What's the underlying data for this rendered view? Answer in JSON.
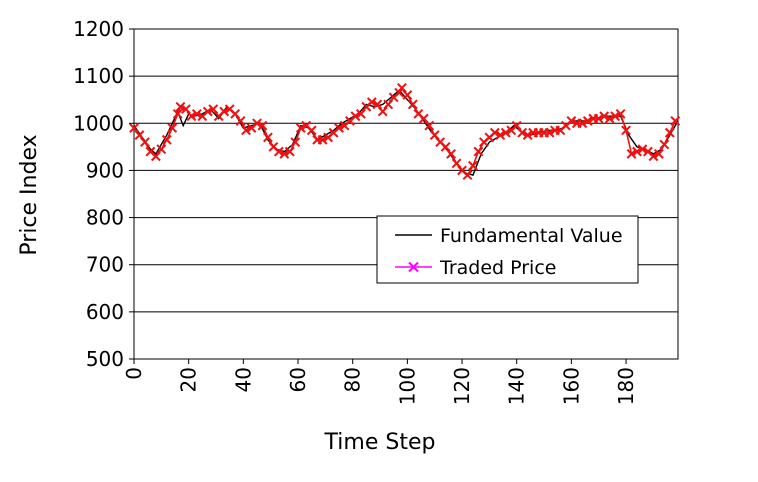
{
  "chart_data": {
    "type": "line",
    "xlabel": "Time Step",
    "ylabel": "Price Index",
    "xlim": [
      0,
      199
    ],
    "ylim": [
      500,
      1200
    ],
    "x_ticks": [
      0,
      20,
      40,
      60,
      80,
      100,
      120,
      140,
      160,
      180
    ],
    "y_ticks": [
      500,
      600,
      700,
      800,
      900,
      1000,
      1100,
      1200
    ],
    "grid": "horizontal",
    "legend_position": "center-right",
    "series": [
      {
        "name": "Fundamental Value",
        "color": "#000000",
        "marker": "none",
        "x": [
          0,
          3,
          6,
          8,
          10,
          12,
          14,
          16,
          18,
          20,
          22,
          25,
          28,
          31,
          34,
          37,
          40,
          43,
          46,
          49,
          52,
          55,
          58,
          61,
          64,
          67,
          70,
          73,
          76,
          79,
          82,
          85,
          88,
          91,
          94,
          97,
          100,
          103,
          106,
          109,
          112,
          115,
          118,
          121,
          124,
          127,
          130,
          133,
          136,
          139,
          142,
          145,
          148,
          151,
          154,
          157,
          160,
          163,
          166,
          169,
          172,
          175,
          178,
          181,
          184,
          187,
          190,
          193,
          196,
          199
        ],
        "values": [
          995,
          970,
          945,
          935,
          955,
          975,
          1000,
          1025,
          995,
          1020,
          1015,
          1020,
          1030,
          1010,
          1035,
          1020,
          990,
          995,
          1000,
          965,
          945,
          940,
          955,
          995,
          990,
          965,
          975,
          985,
          1000,
          1010,
          1020,
          1040,
          1035,
          1040,
          1055,
          1070,
          1050,
          1030,
          1005,
          980,
          960,
          940,
          915,
          895,
          890,
          935,
          960,
          970,
          980,
          995,
          980,
          975,
          980,
          985,
          985,
          990,
          1005,
          1005,
          1005,
          1010,
          1015,
          1015,
          1015,
          975,
          950,
          945,
          935,
          945,
          975,
          1005
        ]
      },
      {
        "name": "Traded Price",
        "color": "#ee1111",
        "legend_line_color": "#ff00ff",
        "marker": "x",
        "x": [
          0,
          2,
          4,
          6,
          8,
          10,
          12,
          14,
          16,
          17,
          19,
          21,
          23,
          25,
          27,
          29,
          31,
          33,
          35,
          37,
          39,
          41,
          43,
          45,
          47,
          49,
          51,
          53,
          55,
          57,
          59,
          61,
          63,
          65,
          67,
          69,
          71,
          73,
          75,
          77,
          79,
          81,
          83,
          85,
          87,
          89,
          91,
          93,
          95,
          97,
          98,
          100,
          102,
          104,
          106,
          108,
          110,
          112,
          114,
          116,
          118,
          120,
          122,
          124,
          126,
          128,
          130,
          132,
          134,
          136,
          138,
          140,
          142,
          144,
          146,
          148,
          150,
          152,
          154,
          156,
          158,
          160,
          162,
          164,
          166,
          168,
          170,
          172,
          174,
          176,
          178,
          180,
          182,
          184,
          186,
          188,
          190,
          192,
          194,
          196,
          198
        ],
        "values": [
          990,
          975,
          960,
          940,
          930,
          945,
          965,
          990,
          1020,
          1035,
          1030,
          1015,
          1020,
          1015,
          1025,
          1030,
          1015,
          1025,
          1030,
          1020,
          1005,
          985,
          990,
          1000,
          995,
          970,
          950,
          940,
          935,
          940,
          960,
          990,
          995,
          985,
          965,
          965,
          970,
          980,
          990,
          995,
          1005,
          1015,
          1020,
          1035,
          1045,
          1040,
          1025,
          1040,
          1055,
          1065,
          1075,
          1060,
          1040,
          1020,
          1010,
          995,
          975,
          960,
          950,
          935,
          915,
          900,
          890,
          910,
          940,
          960,
          970,
          980,
          975,
          980,
          985,
          995,
          980,
          975,
          980,
          980,
          980,
          980,
          985,
          985,
          995,
          1005,
          1000,
          1000,
          1005,
          1010,
          1010,
          1015,
          1010,
          1015,
          1020,
          985,
          935,
          940,
          945,
          940,
          930,
          935,
          955,
          980,
          1005
        ]
      }
    ]
  }
}
